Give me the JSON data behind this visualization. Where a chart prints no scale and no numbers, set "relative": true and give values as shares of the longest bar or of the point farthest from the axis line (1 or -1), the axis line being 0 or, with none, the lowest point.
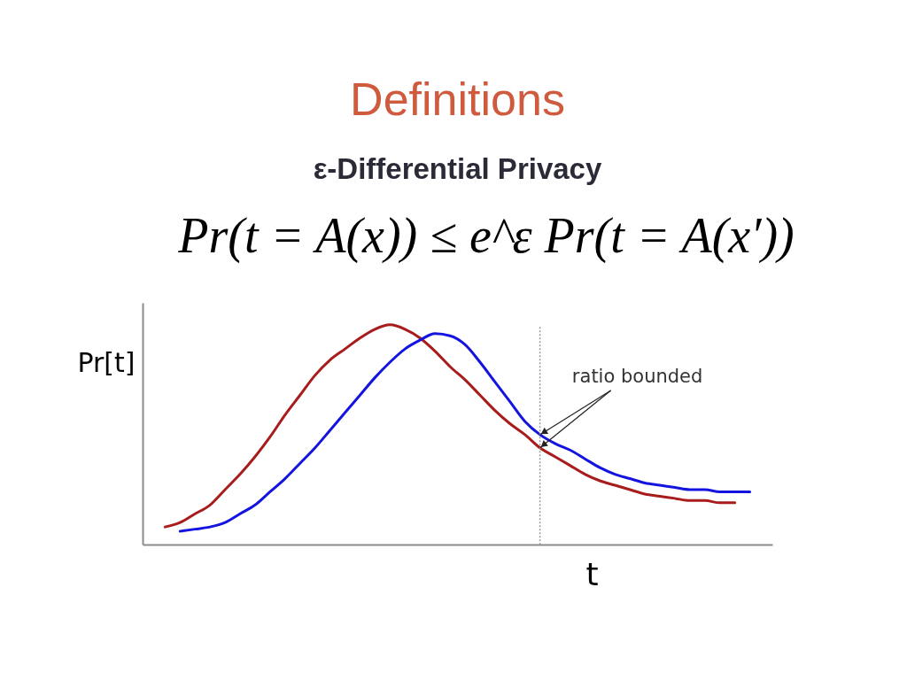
{
  "chart_data": {
    "type": "line",
    "title": "Definitions",
    "subtitle": "ε-Differential Privacy",
    "xlabel": "t",
    "ylabel": "Pr[t]",
    "relative": true,
    "line_style": "solid",
    "categories": [
      null,
      null,
      null,
      null,
      null,
      null,
      null,
      null,
      null,
      null,
      null,
      null,
      null,
      null,
      null,
      null,
      null,
      null,
      null,
      null,
      null,
      null,
      null,
      null,
      null,
      null,
      null,
      null,
      null,
      null,
      null,
      null,
      null,
      null,
      null,
      null,
      null,
      null,
      null,
      null,
      null,
      null
    ],
    "series": [
      {
        "color": "#a81c1c",
        "values": [
          null,
          0.08,
          0.1,
          0.14,
          0.18,
          0.25,
          0.32,
          0.4,
          0.49,
          0.59,
          0.68,
          0.77,
          0.84,
          0.89,
          0.94,
          0.98,
          1.0,
          0.98,
          0.94,
          0.88,
          0.81,
          0.75,
          0.68,
          0.61,
          0.55,
          0.5,
          0.44,
          0.4,
          0.36,
          0.32,
          0.29,
          0.27,
          0.25,
          0.23,
          0.22,
          0.21,
          0.2,
          0.2,
          0.19,
          0.19,
          null,
          null
        ]
      },
      {
        "color": "#1414e0",
        "values": [
          null,
          null,
          0.06,
          0.07,
          0.08,
          0.1,
          0.14,
          0.18,
          0.24,
          0.3,
          0.37,
          0.44,
          0.52,
          0.6,
          0.68,
          0.76,
          0.83,
          0.89,
          0.93,
          0.96,
          0.95,
          0.91,
          0.83,
          0.74,
          0.65,
          0.56,
          0.5,
          0.46,
          0.43,
          0.39,
          0.35,
          0.32,
          0.3,
          0.28,
          0.27,
          0.26,
          0.25,
          0.25,
          0.24,
          0.24,
          0.24,
          null
        ]
      }
    ],
    "annotations": [
      "Pr(t = A(x)) ≤ e^ε Pr(t = A(x′))",
      "ratio bounded"
    ]
  }
}
